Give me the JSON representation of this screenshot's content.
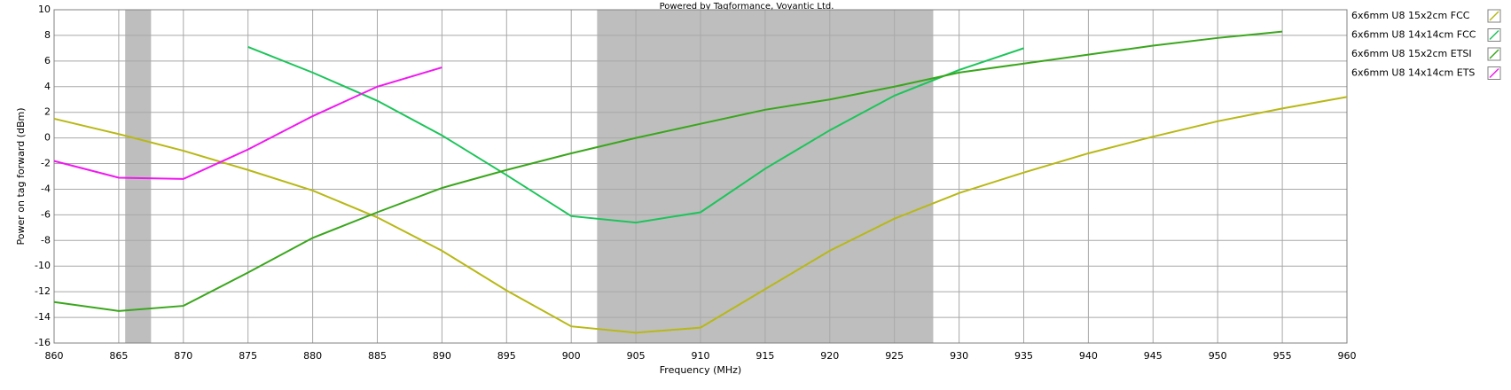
{
  "chart_data": {
    "type": "line",
    "title": "Powered by Tagformance, Voyantic Ltd.",
    "x_label": "Frequency (MHz)",
    "y_label": "Power on tag forward (dBm)",
    "x": [
      860,
      865,
      870,
      875,
      880,
      885,
      890,
      895,
      900,
      905,
      910,
      915,
      920,
      925,
      930,
      935,
      940,
      945,
      950,
      955,
      960
    ],
    "series": [
      {
        "name": "6x6mm U8 15x2cm FCC",
        "color": "#b8b816",
        "values": [
          1.5,
          0.3,
          -1.0,
          -2.5,
          -4.1,
          -6.2,
          -8.8,
          -11.9,
          -14.7,
          -15.2,
          -14.8,
          -11.8,
          -8.8,
          -6.3,
          -4.3,
          -2.7,
          -1.2,
          0.1,
          1.3,
          2.3,
          3.2
        ]
      },
      {
        "name": "6x6mm U8 14x14cm FCC",
        "color": "#1cc45a",
        "values": [
          null,
          null,
          null,
          7.1,
          5.1,
          2.9,
          0.2,
          -2.9,
          -6.1,
          -6.6,
          -5.8,
          -2.4,
          0.6,
          3.3,
          5.3,
          7.0,
          null,
          null,
          null,
          null,
          null
        ]
      },
      {
        "name": "6x6mm U8 15x2cm ETSI",
        "color": "#3aa61c",
        "values": [
          -12.8,
          -13.5,
          -13.1,
          -10.5,
          -7.8,
          -5.8,
          -3.9,
          -2.5,
          -1.2,
          0.0,
          1.1,
          2.2,
          3.0,
          4.0,
          5.1,
          5.8,
          6.5,
          7.2,
          7.8,
          8.3,
          null
        ]
      },
      {
        "name": "6x6mm U8 14x14cm ETS",
        "color": "#f018f0",
        "values": [
          -1.8,
          -3.1,
          -3.2,
          -0.9,
          1.7,
          4.0,
          5.5,
          null,
          null,
          null,
          null,
          null,
          null,
          null,
          null,
          null,
          null,
          null,
          null,
          null,
          null
        ]
      }
    ],
    "shaded_regions": [
      [
        865.5,
        867.5
      ],
      [
        902,
        928
      ]
    ],
    "shade_color": "#bebebe",
    "xlim": [
      860,
      960
    ],
    "xticks": [
      860,
      865,
      870,
      875,
      880,
      885,
      890,
      895,
      900,
      905,
      910,
      915,
      920,
      925,
      930,
      935,
      940,
      945,
      950,
      955,
      960
    ],
    "ylim": [
      -16,
      10
    ],
    "yticks": [
      -16,
      -14,
      -12,
      -10,
      -8,
      -6,
      -4,
      -2,
      0,
      2,
      4,
      6,
      8,
      10
    ],
    "grid": true,
    "legend": "right"
  }
}
